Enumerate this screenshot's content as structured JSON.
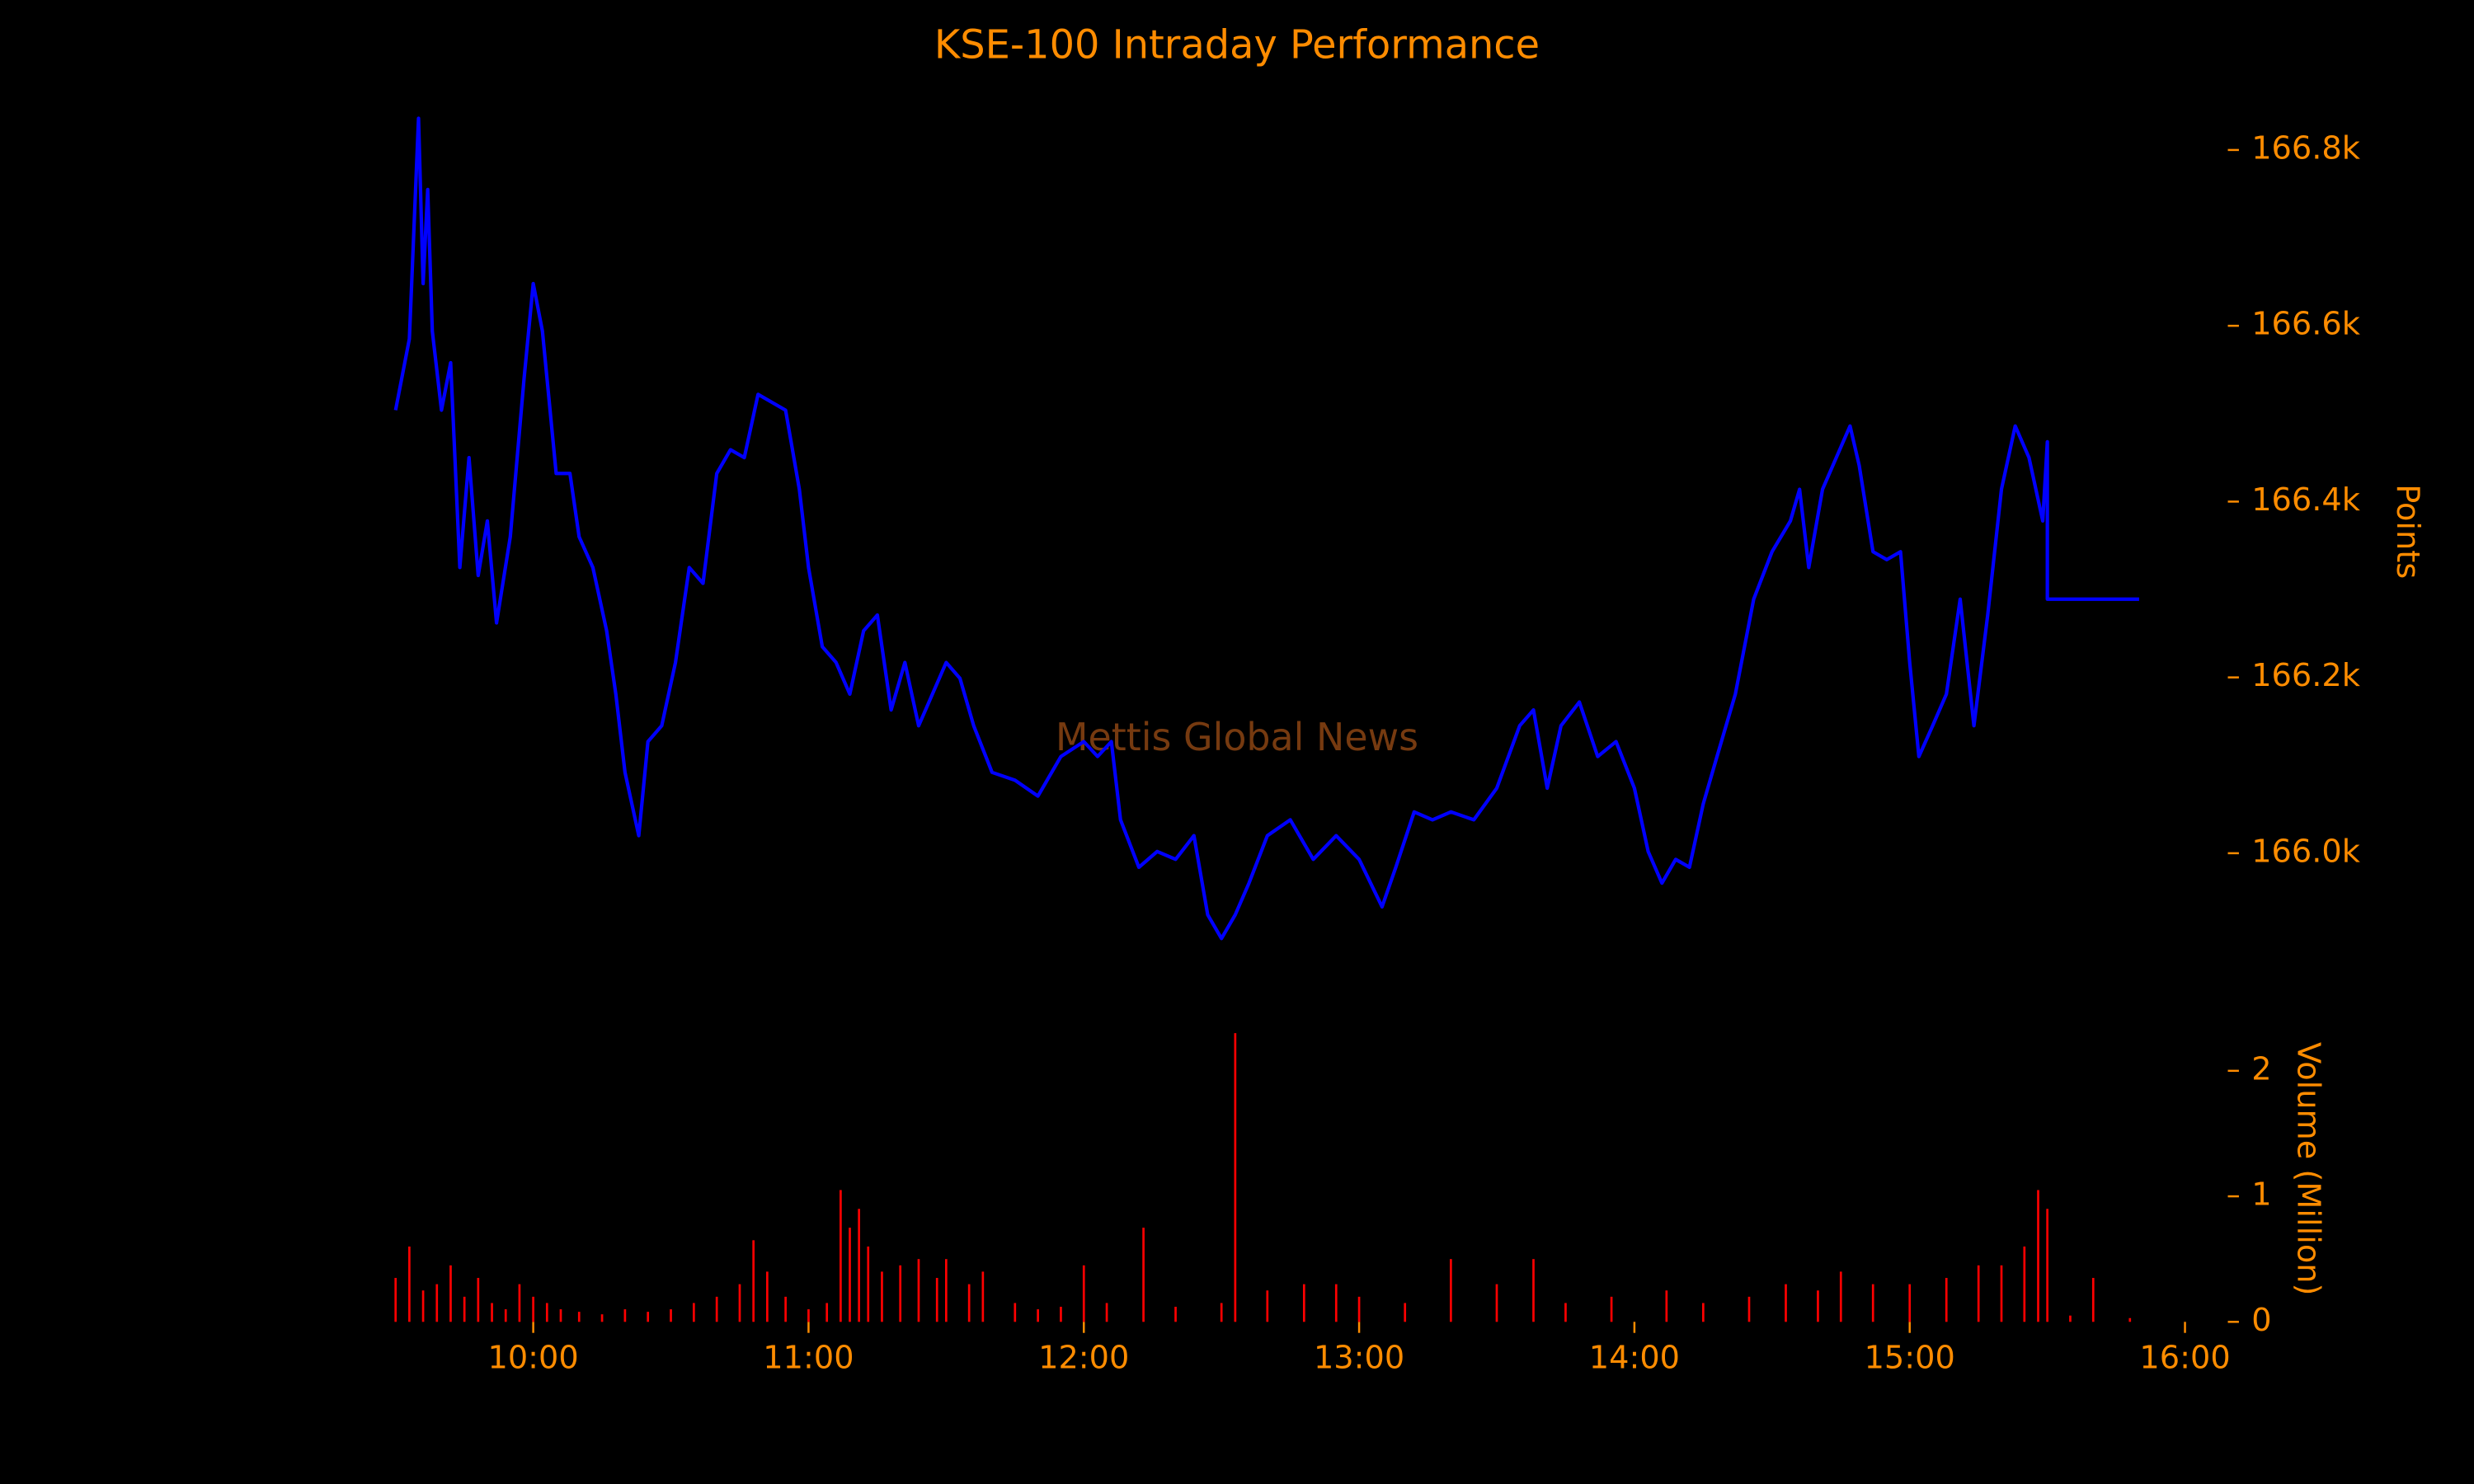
{
  "chart_data": [
    {
      "type": "line",
      "title": "KSE-100 Intraday Performance",
      "ylabel": "Points",
      "annotation": "Mettis Global News",
      "color": "#0000ff",
      "x": [
        "09:30",
        "09:33",
        "09:35",
        "09:36",
        "09:37",
        "09:38",
        "09:40",
        "09:42",
        "09:44",
        "09:46",
        "09:48",
        "09:50",
        "09:52",
        "09:55",
        "09:58",
        "10:00",
        "10:02",
        "10:05",
        "10:08",
        "10:10",
        "10:13",
        "10:16",
        "10:18",
        "10:20",
        "10:23",
        "10:25",
        "10:28",
        "10:31",
        "10:34",
        "10:37",
        "10:40",
        "10:43",
        "10:46",
        "10:49",
        "10:52",
        "10:55",
        "10:58",
        "11:00",
        "11:03",
        "11:06",
        "11:09",
        "11:12",
        "11:15",
        "11:18",
        "11:21",
        "11:24",
        "11:27",
        "11:30",
        "11:33",
        "11:36",
        "11:40",
        "11:45",
        "11:50",
        "11:55",
        "12:00",
        "12:03",
        "12:06",
        "12:08",
        "12:12",
        "12:16",
        "12:20",
        "12:24",
        "12:27",
        "12:30",
        "12:33",
        "12:36",
        "12:40",
        "12:45",
        "12:50",
        "12:55",
        "13:00",
        "13:05",
        "13:08",
        "13:12",
        "13:16",
        "13:20",
        "13:25",
        "13:30",
        "13:35",
        "13:38",
        "13:41",
        "13:44",
        "13:48",
        "13:52",
        "13:56",
        "14:00",
        "14:03",
        "14:06",
        "14:09",
        "14:12",
        "14:15",
        "14:18",
        "14:22",
        "14:26",
        "14:30",
        "14:34",
        "14:36",
        "14:38",
        "14:41",
        "14:44",
        "14:47",
        "14:49",
        "14:52",
        "14:55",
        "14:58",
        "15:00",
        "15:02",
        "15:05",
        "15:08",
        "15:11",
        "15:14",
        "15:17",
        "15:20",
        "15:23",
        "15:26",
        "15:29",
        "15:30",
        "15:30",
        "15:50"
      ],
      "values": [
        166504,
        166585,
        166836,
        166648,
        166755,
        166594,
        166504,
        166558,
        166325,
        166450,
        166316,
        166378,
        166262,
        166360,
        166540,
        166648,
        166594,
        166432,
        166432,
        166360,
        166325,
        166253,
        166181,
        166092,
        166020,
        166127,
        166145,
        166217,
        166325,
        166307,
        166432,
        166459,
        166450,
        166522,
        166513,
        166504,
        166414,
        166325,
        166235,
        166217,
        166181,
        166253,
        166271,
        166163,
        166217,
        166145,
        166181,
        166217,
        166199,
        166145,
        166092,
        166083,
        166065,
        166110,
        166127,
        166110,
        166127,
        166038,
        165984,
        166002,
        165993,
        166020,
        165930,
        165903,
        165930,
        165966,
        166020,
        166038,
        165993,
        166020,
        165993,
        165939,
        165984,
        166047,
        166038,
        166047,
        166038,
        166074,
        166145,
        166163,
        166074,
        166145,
        166172,
        166110,
        166127,
        166074,
        166002,
        165966,
        165993,
        165984,
        166056,
        166110,
        166181,
        166289,
        166343,
        166378,
        166414,
        166325,
        166414,
        166450,
        166486,
        166441,
        166343,
        166334,
        166343,
        166217,
        166110,
        166145,
        166181,
        166289,
        166145,
        166271,
        166414,
        166486,
        166450,
        166378,
        166468,
        166289,
        166289
      ],
      "xlim": [
        "09:27",
        "16:09"
      ],
      "ylim": [
        165885,
        166845
      ],
      "yticks": [
        {
          "value": 166000,
          "label": "166.0k"
        },
        {
          "value": 166200,
          "label": "166.2k"
        },
        {
          "value": 166400,
          "label": "166.4k"
        },
        {
          "value": 166600,
          "label": "166.6k"
        },
        {
          "value": 166800,
          "label": "166.8k"
        }
      ]
    },
    {
      "type": "bar",
      "ylabel": "Volume (Million)",
      "color": "#ff0000",
      "x": [
        "09:30",
        "09:33",
        "09:36",
        "09:39",
        "09:42",
        "09:45",
        "09:48",
        "09:51",
        "09:54",
        "09:57",
        "10:00",
        "10:03",
        "10:06",
        "10:10",
        "10:15",
        "10:20",
        "10:25",
        "10:30",
        "10:35",
        "10:40",
        "10:45",
        "10:48",
        "10:51",
        "10:55",
        "11:00",
        "11:04",
        "11:07",
        "11:09",
        "11:11",
        "11:13",
        "11:16",
        "11:20",
        "11:24",
        "11:28",
        "11:30",
        "11:35",
        "11:38",
        "11:45",
        "11:50",
        "11:55",
        "12:00",
        "12:05",
        "12:13",
        "12:20",
        "12:30",
        "12:33",
        "12:40",
        "12:48",
        "12:55",
        "13:00",
        "13:10",
        "13:20",
        "13:30",
        "13:38",
        "13:45",
        "13:55",
        "14:07",
        "14:15",
        "14:25",
        "14:33",
        "14:40",
        "14:45",
        "14:52",
        "15:00",
        "15:08",
        "15:15",
        "15:20",
        "15:25",
        "15:28",
        "15:30",
        "15:35",
        "15:40",
        "15:48"
      ],
      "values": [
        0.35,
        0.6,
        0.25,
        0.3,
        0.45,
        0.2,
        0.35,
        0.15,
        0.1,
        0.3,
        0.2,
        0.15,
        0.1,
        0.08,
        0.06,
        0.1,
        0.08,
        0.1,
        0.15,
        0.2,
        0.3,
        0.65,
        0.4,
        0.2,
        0.1,
        0.15,
        1.05,
        0.75,
        0.9,
        0.6,
        0.4,
        0.45,
        0.5,
        0.35,
        0.5,
        0.3,
        0.4,
        0.15,
        0.1,
        0.12,
        0.45,
        0.15,
        0.75,
        0.12,
        0.15,
        2.3,
        0.25,
        0.3,
        0.3,
        0.2,
        0.15,
        0.5,
        0.3,
        0.5,
        0.15,
        0.2,
        0.25,
        0.15,
        0.2,
        0.3,
        0.25,
        0.4,
        0.3,
        0.3,
        0.35,
        0.45,
        0.45,
        0.6,
        1.05,
        0.9,
        0.05,
        0.35,
        0.03
      ],
      "xlim": [
        "09:27",
        "16:09"
      ],
      "ylim": [
        0,
        2.35
      ],
      "yticks": [
        0,
        1,
        2
      ],
      "xticks": [
        "10:00",
        "11:00",
        "12:00",
        "13:00",
        "14:00",
        "15:00",
        "16:00"
      ]
    }
  ]
}
